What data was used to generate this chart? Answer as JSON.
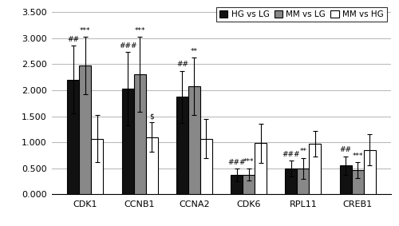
{
  "categories": [
    "CDK1",
    "CCNB1",
    "CCNA2",
    "CDK6",
    "RPL11",
    "CREB1"
  ],
  "series": {
    "HG vs LG": {
      "values": [
        2.2,
        2.03,
        1.87,
        0.37,
        0.5,
        0.55
      ],
      "errors": [
        0.65,
        0.7,
        0.5,
        0.12,
        0.15,
        0.18
      ],
      "color": "#111111",
      "annotations": [
        "##",
        "###",
        "##",
        "###",
        "###",
        "##"
      ]
    },
    "MM vs LG": {
      "values": [
        2.47,
        2.3,
        2.07,
        0.38,
        0.5,
        0.47
      ],
      "errors": [
        0.55,
        0.72,
        0.55,
        0.12,
        0.2,
        0.15
      ],
      "color": "#888888",
      "annotations": [
        "***",
        "***",
        "**",
        "***",
        "**",
        "***"
      ]
    },
    "MM vs HG": {
      "values": [
        1.07,
        1.1,
        1.07,
        0.98,
        0.97,
        0.85
      ],
      "errors": [
        0.45,
        0.28,
        0.38,
        0.38,
        0.25,
        0.3
      ],
      "color": "#ffffff",
      "annotations": [
        "",
        "$",
        "",
        "",
        "",
        ""
      ]
    }
  },
  "ylim": [
    0.0,
    3.6
  ],
  "yticks": [
    0.0,
    0.5,
    1.0,
    1.5,
    2.0,
    2.5,
    3.0,
    3.5
  ],
  "ytick_labels": [
    "0.000",
    "0.500",
    "1.000",
    "1.500",
    "2.000",
    "2.500",
    "3.000",
    "3.500"
  ],
  "legend_labels": [
    "HG vs LG",
    "MM vs LG",
    "MM vs HG"
  ],
  "legend_colors": [
    "#111111",
    "#888888",
    "#ffffff"
  ],
  "bar_width": 0.22,
  "figsize": [
    5.0,
    2.83
  ],
  "dpi": 100,
  "bg_color": "#ffffff",
  "edgecolor": "#000000",
  "gridcolor": "#bbbbbb",
  "annotation_fontsize": 6.5,
  "tick_fontsize": 8,
  "legend_fontsize": 7.5
}
